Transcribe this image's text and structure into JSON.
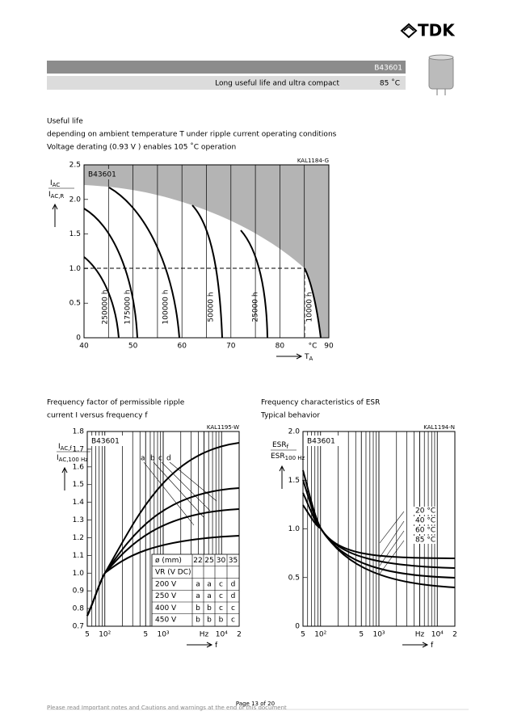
{
  "header": {
    "logo": "TDK",
    "part": "B43601",
    "subtitle": "Long useful life and ultra compact",
    "temp": "85 ˚C"
  },
  "intro": [
    "Useful life",
    "depending on ambient temperature T      under ripple current operating conditions",
    "Voltage derating (0.93       V   ) enables 105   ˚C operation"
  ],
  "charts": [
    {
      "title": [],
      "code": "KAL1184-G",
      "part": "B43601",
      "ylabel": {
        "top": "I",
        "top_sub": "AC",
        "bottom": "I",
        "bottom_sub": "AC,R"
      },
      "xlabel": {
        "main": "T",
        "sub": "A"
      },
      "xunit": "°C",
      "xlim": [
        40,
        90
      ],
      "xticks": [
        40,
        50,
        60,
        70,
        80,
        90
      ],
      "xlog": false,
      "ylim": [
        0,
        2.5
      ],
      "yticks": [
        0,
        {
          "value": 0.5,
          "label": "0.5"
        },
        {
          "value": 1,
          "label": "1.0"
        },
        {
          "value": 1.5,
          "label": "1.5"
        },
        {
          "value": 2,
          "label": "2.0"
        },
        {
          "value": 2.5,
          "label": "2.5"
        }
      ],
      "curve_labels": [
        "250000 h",
        "175000 h",
        "100000 h",
        "50000 h",
        "25000 h",
        "10000 h"
      ]
    },
    {
      "title": [
        "Frequency factor of permissible ripple",
        "current I      versus frequency f"
      ],
      "code": "KAL1195-W",
      "part": "B43601",
      "ylabel": {
        "top": "I",
        "top_sub": "AC,f",
        "bottom": "I",
        "bottom_sub": "AC,100 Hz"
      },
      "xlabel": {
        "main": "f",
        "sub": ""
      },
      "xlim": [
        50,
        20000
      ],
      "xlog": true,
      "xticks": [
        {
          "value": 50,
          "label": "5"
        },
        {
          "value": 100,
          "label": "10²"
        },
        {
          "value": 500,
          "label": "5"
        },
        {
          "value": 1000,
          "label": "10³"
        },
        {
          "value": 5000,
          "label": "Hz"
        },
        {
          "value": 10000,
          "label": "10⁴"
        },
        {
          "value": 20000,
          "label": "2"
        }
      ],
      "ylim": [
        0.7,
        1.8
      ],
      "yticks": [
        0.7,
        0.8,
        0.9,
        {
          "value": 1,
          "label": "1.0"
        },
        1.1,
        1.2,
        1.3,
        1.4,
        1.5,
        1.6,
        1.7,
        1.8
      ],
      "curve_labels": [
        "a",
        "b",
        "c",
        "d"
      ],
      "table": {
        "head": [
          [
            "ø (mm)",
            "22",
            "25",
            "30",
            "35"
          ],
          [
            "VR (V DC)"
          ]
        ],
        "rows": [
          [
            "200 V",
            "a",
            "a",
            "c",
            "d"
          ],
          [
            "250 V",
            "a",
            "a",
            "c",
            "d"
          ],
          [
            "400 V",
            "b",
            "b",
            "c",
            "c"
          ],
          [
            "450 V",
            "b",
            "b",
            "b",
            "c"
          ]
        ]
      }
    },
    {
      "title": [
        "Frequency characteristics of ESR",
        "Typical behavior"
      ],
      "code": "KAL1194-N",
      "part": "B43601",
      "ylabel": {
        "top": "ESR",
        "top_sub": "f",
        "bottom": "ESR",
        "bottom_sub": "100 Hz"
      },
      "xlabel": {
        "main": "f",
        "sub": ""
      },
      "xlim": [
        50,
        20000
      ],
      "xlog": true,
      "xticks": [
        {
          "value": 50,
          "label": "5"
        },
        {
          "value": 100,
          "label": "10²"
        },
        {
          "value": 500,
          "label": "5"
        },
        {
          "value": 1000,
          "label": "10³"
        },
        {
          "value": 5000,
          "label": "Hz"
        },
        {
          "value": 10000,
          "label": "10⁴"
        },
        {
          "value": 20000,
          "label": "2"
        }
      ],
      "ylim": [
        0,
        2
      ],
      "yticks": [
        0,
        0.5,
        {
          "value": 1,
          "label": "1.0"
        },
        1.5,
        {
          "value": 2,
          "label": "2.0"
        }
      ],
      "curve_labels": [
        "20 °C",
        "40 °C",
        "60 °C",
        "85 °C"
      ]
    }
  ],
  "footer": {
    "note": "Please read Important notes and Cautions and warnings at the end of this document",
    "page": "Page 13 of 20"
  }
}
